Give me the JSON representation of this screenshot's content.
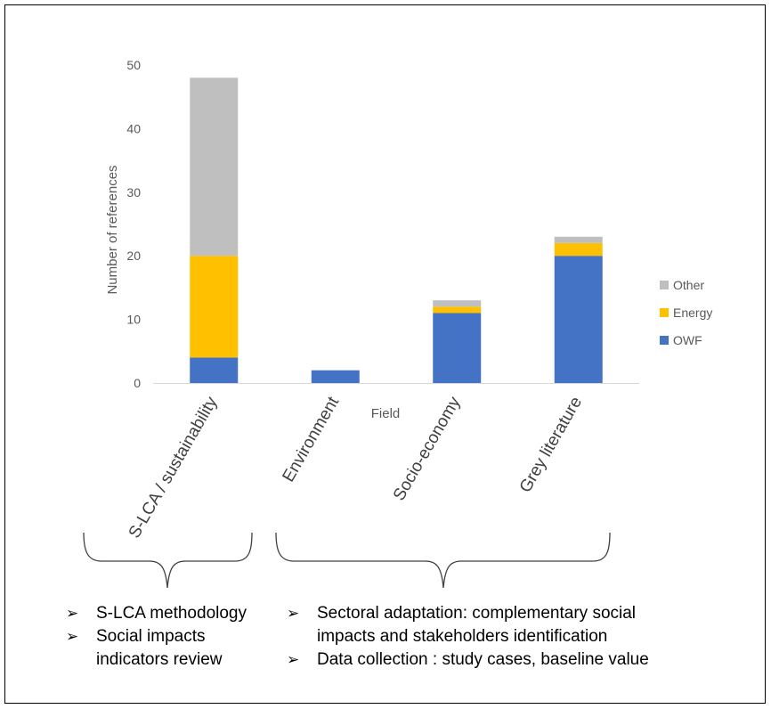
{
  "chart_data": {
    "type": "bar",
    "stacked": true,
    "title": "",
    "xlabel": "Field",
    "ylabel": "Number of references",
    "ylim": [
      0,
      50
    ],
    "yticks": [
      0,
      10,
      20,
      30,
      40,
      50
    ],
    "grid": false,
    "legend_position": "right",
    "categories": [
      "S-LCA / sustainability",
      "Environment",
      "Socio-economy",
      "Grey literature"
    ],
    "series": [
      {
        "name": "OWF",
        "color": "#4472C4",
        "values": [
          4,
          2,
          11,
          20
        ]
      },
      {
        "name": "Energy",
        "color": "#FFC000",
        "values": [
          16,
          0,
          1,
          2
        ]
      },
      {
        "name": "Other",
        "color": "#BFBFBF",
        "values": [
          28,
          0,
          1,
          1
        ]
      }
    ]
  },
  "annotations": {
    "left_bullets": [
      "S-LCA methodology",
      "Social impacts indicators review"
    ],
    "right_bullets": [
      "Sectoral adaptation: complementary social impacts and stakeholders identification",
      "Data collection : study cases, baseline value"
    ],
    "bullet_glyph": "➢"
  }
}
